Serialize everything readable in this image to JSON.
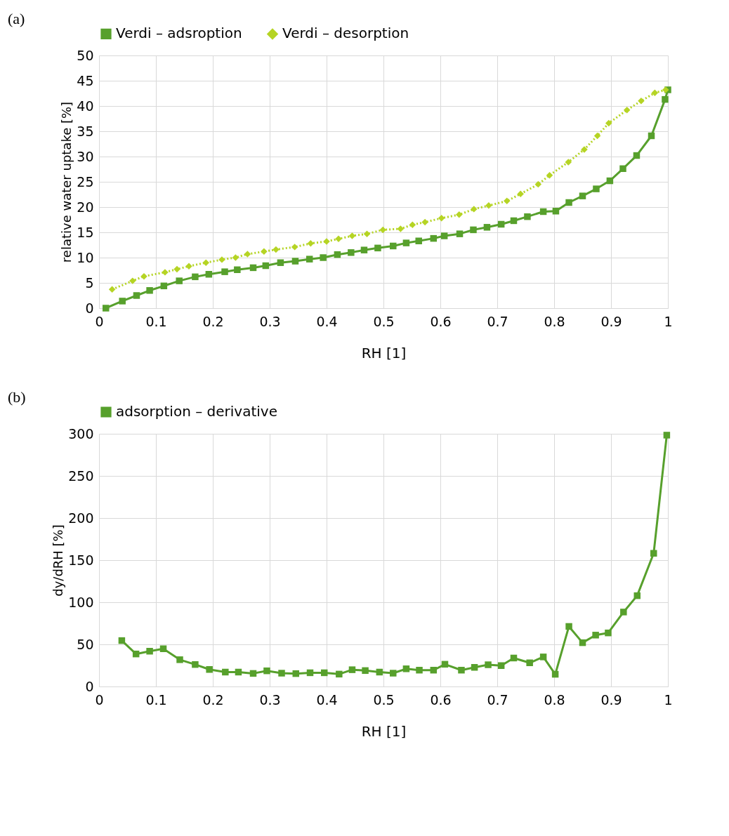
{
  "chart_data": [
    {
      "type": "line",
      "xlabel": "RH [1]",
      "ylabel": "relative water uptake [%]",
      "annotations": [
        "(a)"
      ],
      "xlim": [
        0,
        1
      ],
      "xticks": [
        0,
        0.1,
        0.2,
        0.3,
        0.4,
        0.5,
        0.6,
        0.7,
        0.8,
        0.9,
        1
      ],
      "ylim": [
        0,
        50
      ],
      "yticks": [
        0,
        5,
        10,
        15,
        20,
        25,
        30,
        35,
        40,
        45,
        50
      ],
      "grid": true,
      "legend": "top",
      "series": [
        {
          "name": "Verdi – adsroption",
          "color": "#57a02c",
          "marker": "square",
          "line_style": "solid",
          "x": [
            0.012,
            0.041,
            0.066,
            0.089,
            0.114,
            0.141,
            0.169,
            0.193,
            0.221,
            0.243,
            0.271,
            0.293,
            0.319,
            0.345,
            0.37,
            0.394,
            0.419,
            0.443,
            0.466,
            0.49,
            0.517,
            0.54,
            0.562,
            0.588,
            0.607,
            0.634,
            0.658,
            0.682,
            0.707,
            0.729,
            0.753,
            0.781,
            0.803,
            0.826,
            0.85,
            0.874,
            0.898,
            0.921,
            0.945,
            0.971,
            0.995,
            1.0
          ],
          "values": [
            0,
            1.4,
            2.5,
            3.5,
            4.4,
            5.4,
            6.2,
            6.7,
            7.2,
            7.6,
            8.0,
            8.4,
            9.0,
            9.3,
            9.7,
            10.0,
            10.6,
            11.0,
            11.5,
            11.9,
            12.3,
            12.9,
            13.3,
            13.8,
            14.3,
            14.7,
            15.5,
            16.0,
            16.6,
            17.3,
            18.1,
            19.1,
            19.2,
            20.9,
            22.2,
            23.6,
            25.2,
            27.6,
            30.2,
            34.1,
            41.3,
            43.2
          ]
        },
        {
          "name": "Verdi – desorption",
          "color": "#b5d424",
          "marker": "diamond",
          "line_style": "dotted",
          "x": [
            0.023,
            0.059,
            0.079,
            0.116,
            0.137,
            0.158,
            0.188,
            0.216,
            0.24,
            0.261,
            0.29,
            0.311,
            0.344,
            0.372,
            0.4,
            0.421,
            0.445,
            0.471,
            0.499,
            0.53,
            0.551,
            0.573,
            0.602,
            0.633,
            0.659,
            0.685,
            0.717,
            0.741,
            0.772,
            0.792,
            0.825,
            0.853,
            0.876,
            0.896,
            0.928,
            0.953,
            0.977,
            0.996
          ],
          "values": [
            3.7,
            5.4,
            6.3,
            7.1,
            7.7,
            8.3,
            9.0,
            9.6,
            10.0,
            10.7,
            11.2,
            11.6,
            12.1,
            12.8,
            13.2,
            13.7,
            14.3,
            14.7,
            15.5,
            15.7,
            16.5,
            17.0,
            17.8,
            18.5,
            19.6,
            20.3,
            21.2,
            22.6,
            24.5,
            26.3,
            28.9,
            31.4,
            34.1,
            36.6,
            39.2,
            41.0,
            42.6,
            43.2
          ]
        }
      ]
    },
    {
      "type": "line",
      "xlabel": "RH [1]",
      "ylabel": "dy/dRH [%]",
      "annotations": [
        "(b)"
      ],
      "xlim": [
        0,
        1
      ],
      "xticks": [
        0,
        0.1,
        0.2,
        0.3,
        0.4,
        0.5,
        0.6,
        0.7,
        0.8,
        0.9,
        1
      ],
      "ylim": [
        0,
        300
      ],
      "yticks": [
        0,
        50,
        100,
        150,
        200,
        250,
        300
      ],
      "grid": true,
      "legend": "top",
      "series": [
        {
          "name": "adsorption – derivative",
          "color": "#57a02c",
          "marker": "square",
          "line_style": "solid",
          "x": [
            0.04,
            0.065,
            0.089,
            0.113,
            0.142,
            0.169,
            0.194,
            0.222,
            0.245,
            0.271,
            0.295,
            0.321,
            0.346,
            0.371,
            0.396,
            0.422,
            0.445,
            0.468,
            0.493,
            0.517,
            0.54,
            0.563,
            0.588,
            0.608,
            0.637,
            0.66,
            0.684,
            0.707,
            0.729,
            0.757,
            0.781,
            0.802,
            0.826,
            0.85,
            0.873,
            0.895,
            0.922,
            0.946,
            0.975,
            0.998
          ],
          "values": [
            54.5,
            38.6,
            41.9,
            44.8,
            31.8,
            26.1,
            20.2,
            17.1,
            17.1,
            15.5,
            18.6,
            15.8,
            15.3,
            16.3,
            16.3,
            14.7,
            19.9,
            18.9,
            17.1,
            15.8,
            21.0,
            19.4,
            19.4,
            26.4,
            19.4,
            22.7,
            25.8,
            24.8,
            33.8,
            28.1,
            35.1,
            14.5,
            71.3,
            52,
            61.0,
            63.6,
            88.4,
            107.8,
            158.1,
            298.4
          ]
        }
      ]
    }
  ]
}
